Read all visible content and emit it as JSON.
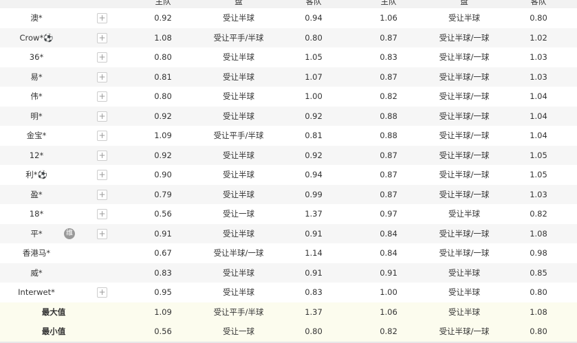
{
  "headers": [
    "主队",
    "盘",
    "客队",
    "主队",
    "盘",
    "客队"
  ],
  "rows": [
    {
      "name": "澳*",
      "plus": true,
      "h1": "0.92",
      "p1": "受让半球",
      "a1": "0.94",
      "h2": "1.06",
      "p2": "受让半球",
      "a2": "0.80"
    },
    {
      "name": "Crow*⚽",
      "plus": true,
      "h1": "1.08",
      "p1": "受让平手/半球",
      "a1": "0.80",
      "h2": "0.87",
      "p2": "受让半球/一球",
      "a2": "1.02"
    },
    {
      "name": "36*",
      "plus": true,
      "h1": "0.80",
      "p1": "受让半球",
      "a1": "1.05",
      "h2": "0.83",
      "p2": "受让半球/一球",
      "a2": "1.03"
    },
    {
      "name": "易*",
      "plus": true,
      "h1": "0.81",
      "p1": "受让半球",
      "a1": "1.07",
      "h2": "0.87",
      "p2": "受让半球/一球",
      "a2": "1.03"
    },
    {
      "name": "伟*",
      "plus": true,
      "h1": "0.80",
      "p1": "受让半球",
      "a1": "1.00",
      "h2": "0.82",
      "p2": "受让半球/一球",
      "a2": "1.04"
    },
    {
      "name": "明*",
      "plus": true,
      "h1": "0.92",
      "p1": "受让半球",
      "a1": "0.92",
      "h2": "0.88",
      "p2": "受让半球/一球",
      "a2": "1.04"
    },
    {
      "name": "金宝*",
      "plus": true,
      "h1": "1.09",
      "p1": "受让平手/半球",
      "a1": "0.81",
      "h2": "0.88",
      "p2": "受让半球/一球",
      "a2": "1.04"
    },
    {
      "name": "12*",
      "plus": true,
      "h1": "0.92",
      "p1": "受让半球",
      "a1": "0.92",
      "h2": "0.87",
      "p2": "受让半球/一球",
      "a2": "1.05"
    },
    {
      "name": "利*⚽",
      "plus": true,
      "h1": "0.90",
      "p1": "受让半球",
      "a1": "0.94",
      "h2": "0.87",
      "p2": "受让半球/一球",
      "a2": "1.05"
    },
    {
      "name": "盈*",
      "plus": true,
      "h1": "0.79",
      "p1": "受让半球",
      "a1": "0.99",
      "h2": "0.87",
      "p2": "受让半球/一球",
      "a2": "1.03"
    },
    {
      "name": "18*",
      "plus": true,
      "h1": "0.56",
      "p1": "受让一球",
      "a1": "1.37",
      "h2": "0.97",
      "p2": "受让半球",
      "a2": "0.82"
    },
    {
      "name": "平*",
      "badge": "维",
      "plus": true,
      "h1": "0.91",
      "p1": "受让半球",
      "a1": "0.91",
      "h2": "0.84",
      "p2": "受让半球/一球",
      "a2": "1.08"
    },
    {
      "name": "香港马*",
      "plus": false,
      "h1": "0.67",
      "p1": "受让半球/一球",
      "a1": "1.14",
      "h2": "0.84",
      "p2": "受让半球/一球",
      "a2": "0.98"
    },
    {
      "name": "威*",
      "plus": false,
      "h1": "0.83",
      "p1": "受让半球",
      "a1": "0.91",
      "h2": "0.91",
      "p2": "受让半球",
      "a2": "0.85"
    },
    {
      "name": "Interwet*",
      "plus": true,
      "h1": "0.95",
      "p1": "受让半球",
      "a1": "0.83",
      "h2": "1.00",
      "p2": "受让半球",
      "a2": "0.80"
    }
  ],
  "summary": [
    {
      "name": "最大值",
      "h1": "1.09",
      "p1": "受让平手/半球",
      "a1": "1.37",
      "h2": "1.06",
      "p2": "受让半球",
      "a2": "1.08"
    },
    {
      "name": "最小值",
      "h1": "0.56",
      "p1": "受让一球",
      "a1": "0.80",
      "h2": "0.82",
      "p2": "受让半球/一球",
      "a2": "0.80"
    }
  ],
  "icons": {
    "plus": "+",
    "plus_icon": "plus-icon"
  }
}
